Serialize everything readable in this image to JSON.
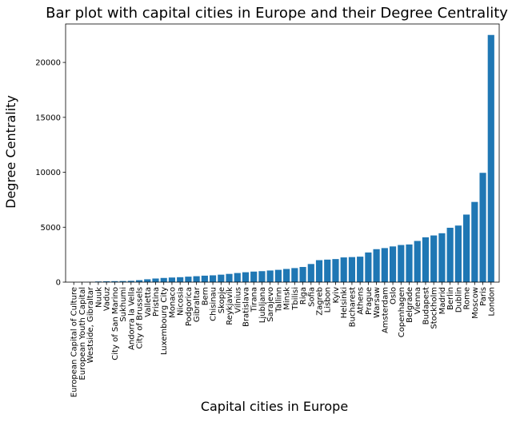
{
  "chart_data": {
    "type": "bar",
    "title": "Bar plot with capital cities in Europe and their Degree Centrality",
    "xlabel": "Capital cities in Europe",
    "ylabel": "Degree Centrality",
    "ylim": [
      0,
      23500
    ],
    "yticks": [
      0,
      5000,
      10000,
      15000,
      20000
    ],
    "grid": false,
    "bar_color": "#1f77b4",
    "categories": [
      "European Capital of Culture",
      "European Youth Capital",
      "Westside, Gibraltar",
      "Nuuk",
      "Vaduz",
      "City of San Marino",
      "Sukhumi",
      "Andorra la Vella",
      "City of Brussels",
      "Valletta",
      "Pristina",
      "Luxembourg City",
      "Monaco",
      "Nicosia",
      "Podgorica",
      "Gibraltar",
      "Bern",
      "Chisinau",
      "Skopje",
      "Reykjavík",
      "Vilnius",
      "Bratislava",
      "Tirana",
      "Ljubljana",
      "Sarajevo",
      "Tallinn",
      "Minsk",
      "Tbilisi",
      "Riga",
      "Sofia",
      "Zagreb",
      "Lisbon",
      "Kyiv",
      "Helsinki",
      "Bucharest",
      "Athens",
      "Prague",
      "Warsaw",
      "Amsterdam",
      "Oslo",
      "Copenhagen",
      "Belgrade",
      "Vienna",
      "Budapest",
      "Stockholm",
      "Madrid",
      "Berlin",
      "Dublin",
      "Rome",
      "Moscow",
      "Paris",
      "London"
    ],
    "values": [
      5,
      10,
      20,
      60,
      80,
      90,
      100,
      120,
      180,
      260,
      330,
      380,
      420,
      450,
      500,
      540,
      590,
      620,
      680,
      750,
      830,
      900,
      960,
      1000,
      1060,
      1120,
      1200,
      1280,
      1380,
      1650,
      2000,
      2050,
      2100,
      2250,
      2280,
      2320,
      2700,
      3000,
      3100,
      3250,
      3380,
      3430,
      3750,
      4080,
      4250,
      4450,
      4950,
      5150,
      6150,
      7300,
      9950,
      22500
    ]
  }
}
